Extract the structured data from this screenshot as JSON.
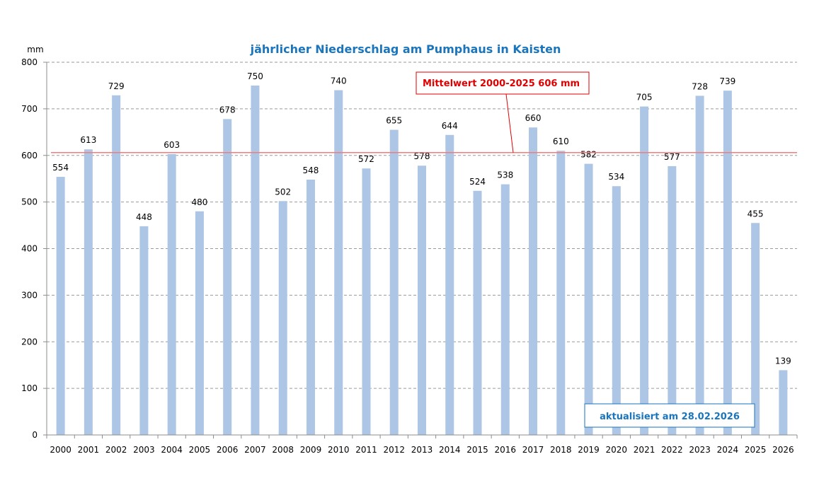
{
  "chart_data": {
    "type": "bar",
    "title": "jährlicher Niederschlag am Pumphaus in Kaisten",
    "xlabel": "",
    "ylabel": "mm",
    "ylim": [
      0,
      800
    ],
    "yticks": [
      0,
      100,
      200,
      300,
      400,
      500,
      600,
      700,
      800
    ],
    "grid": true,
    "categories": [
      "2000",
      "2001",
      "2002",
      "2003",
      "2004",
      "2005",
      "2006",
      "2007",
      "2008",
      "2009",
      "2010",
      "2011",
      "2012",
      "2013",
      "2014",
      "2015",
      "2016",
      "2017",
      "2018",
      "2019",
      "2020",
      "2021",
      "2022",
      "2023",
      "2024",
      "2025",
      "2026"
    ],
    "values": [
      554,
      613,
      729,
      448,
      603,
      480,
      678,
      750,
      502,
      548,
      740,
      572,
      655,
      578,
      644,
      524,
      538,
      660,
      610,
      582,
      534,
      705,
      577,
      728,
      739,
      455,
      139
    ],
    "mean_line": {
      "value": 606,
      "label": "Mittelwert 2000-2025  606 mm"
    },
    "annotation": "aktualisiert am 28.02.2026",
    "colors": {
      "bar": "#adc6e5",
      "title": "#1a75bc",
      "mean_line": "#f07c7c",
      "callout_border": "#e00000",
      "callout_text": "#e00000",
      "annotation_border": "#1a75bc",
      "annotation_text": "#1a75bc",
      "grid": "#9a9a9a",
      "axis": "#8c8c8c"
    }
  }
}
